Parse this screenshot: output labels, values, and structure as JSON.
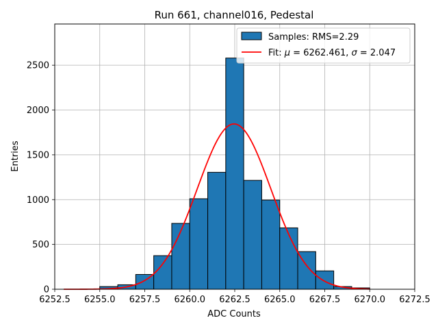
{
  "chart_data": {
    "type": "bar",
    "title": "Run 661, channel016, Pedestal",
    "xlabel": "ADC Counts",
    "ylabel": "Entries",
    "xlim": [
      6252.5,
      6272.5
    ],
    "ylim": [
      0,
      2960
    ],
    "grid": true,
    "legend_position": "top-right",
    "x_ticks": [
      {
        "value": 6252.5,
        "label": "6252.5"
      },
      {
        "value": 6255.0,
        "label": "6255.0"
      },
      {
        "value": 6257.5,
        "label": "6257.5"
      },
      {
        "value": 6260.0,
        "label": "6260.0"
      },
      {
        "value": 6262.5,
        "label": "6262.5"
      },
      {
        "value": 6265.0,
        "label": "6265.0"
      },
      {
        "value": 6267.5,
        "label": "6267.5"
      },
      {
        "value": 6270.0,
        "label": "6270.0"
      },
      {
        "value": 6272.5,
        "label": "6272.5"
      }
    ],
    "y_ticks": [
      {
        "value": 0,
        "label": "0"
      },
      {
        "value": 500,
        "label": "500"
      },
      {
        "value": 1000,
        "label": "1000"
      },
      {
        "value": 1500,
        "label": "1500"
      },
      {
        "value": 2000,
        "label": "2000"
      },
      {
        "value": 2500,
        "label": "2500"
      }
    ],
    "histogram": {
      "name": "Samples: RMS=2.29",
      "color": "#1f77b4",
      "edge_color": "#000000",
      "bins": [
        {
          "x0": 6255,
          "x1": 6256,
          "value": 30
        },
        {
          "x0": 6256,
          "x1": 6257,
          "value": 50
        },
        {
          "x0": 6257,
          "x1": 6258,
          "value": 165
        },
        {
          "x0": 6258,
          "x1": 6259,
          "value": 375
        },
        {
          "x0": 6259,
          "x1": 6260,
          "value": 735
        },
        {
          "x0": 6260,
          "x1": 6261,
          "value": 1010
        },
        {
          "x0": 6261,
          "x1": 6262,
          "value": 1305
        },
        {
          "x0": 6262,
          "x1": 6263,
          "value": 2580
        },
        {
          "x0": 6263,
          "x1": 6264,
          "value": 1215
        },
        {
          "x0": 6264,
          "x1": 6265,
          "value": 995
        },
        {
          "x0": 6265,
          "x1": 6266,
          "value": 685
        },
        {
          "x0": 6266,
          "x1": 6267,
          "value": 420
        },
        {
          "x0": 6267,
          "x1": 6268,
          "value": 205
        },
        {
          "x0": 6268,
          "x1": 6269,
          "value": 30
        },
        {
          "x0": 6269,
          "x1": 6270,
          "value": 15
        }
      ]
    },
    "fit": {
      "name_prefix": "Fit: ",
      "mu_symbol": "μ",
      "mu_text": " = 6262.461, ",
      "sigma_symbol": "σ",
      "sigma_text": " = 2.047",
      "color": "#ff0000",
      "mu": 6262.461,
      "sigma": 2.047,
      "amplitude": 1845,
      "x_range": [
        6253,
        6270
      ]
    }
  }
}
